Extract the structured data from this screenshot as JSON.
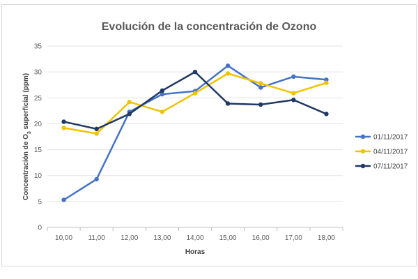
{
  "chart_data": {
    "type": "line",
    "title": "Evolución de la concentración de Ozono",
    "xlabel": "Horas",
    "ylabel_pre": "Concentración de O",
    "ylabel_sub": "3",
    "ylabel_post": " superficial  (ppm)",
    "categories": [
      "10,00",
      "11,00",
      "12,00",
      "13,00",
      "14,00",
      "15,00",
      "16,00",
      "17,00",
      "18,00"
    ],
    "ylim": [
      0,
      35
    ],
    "yticks": [
      0,
      5,
      10,
      15,
      20,
      25,
      30,
      35
    ],
    "grid": true,
    "legend_position": "right",
    "series": [
      {
        "name": "01/11/2017",
        "color": "#4472C4",
        "values": [
          5.3,
          9.3,
          22.3,
          25.7,
          26.3,
          31.2,
          27.0,
          29.1,
          28.5
        ]
      },
      {
        "name": "04/11/2017",
        "color": "#F0C300",
        "values": [
          19.2,
          18.1,
          24.2,
          22.3,
          25.9,
          29.7,
          27.8,
          25.9,
          27.9
        ]
      },
      {
        "name": "07/11/2017",
        "color": "#203864",
        "values": [
          20.4,
          19.0,
          21.9,
          26.4,
          30.0,
          23.9,
          23.7,
          24.6,
          21.9
        ]
      }
    ]
  }
}
